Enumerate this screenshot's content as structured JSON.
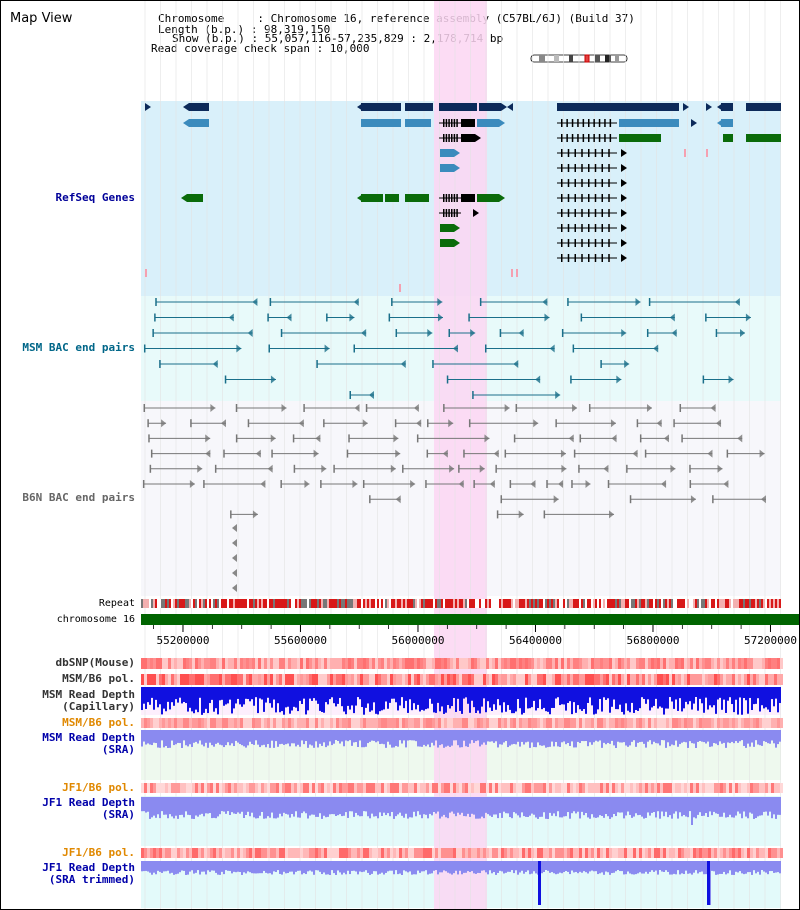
{
  "page": {
    "title": "Map View"
  },
  "info": {
    "lines": [
      "Chromosome     : Chromosome 16, reference assembly (C57BL/6J) (Build 37)",
      "Length (b.p.) : 98,319,150",
      "Show (b.p.) : 55,057,116-57,235,829 : 2,178,714 bp",
      "Read coverage check span : 10,000"
    ]
  },
  "tracks": {
    "refseq": "RefSeq Genes",
    "msm_bac": "MSM BAC end pairs",
    "b6n_bac": "B6N BAC end pairs",
    "repeat": "Repeat",
    "chromosome": "chromosome 16",
    "dbsnp": "dbSNP(Mouse)",
    "msm_b6_pol": "MSM/B6 pol.",
    "msm_depth_cap": "MSM Read Depth\n(Capillary)",
    "msm_b6_pol2": "MSM/B6 pol.",
    "msm_depth_sra": "MSM Read Depth\n(SRA)",
    "jf1_b6_pol": "JF1/B6 pol.",
    "jf1_depth_sra": "JF1 Read Depth\n(SRA)",
    "jf1_b6_pol2": "JF1/B6 pol.",
    "jf1_depth_trim": "JF1 Read Depth\n(SRA trimmed)"
  },
  "axis": {
    "ticks": [
      "55200000",
      "55600000",
      "56000000",
      "56400000",
      "56800000",
      "57200000"
    ],
    "tick_values": [
      55200000,
      55600000,
      56000000,
      56400000,
      56800000,
      57200000
    ],
    "range": [
      55057116,
      57235829
    ]
  },
  "highlight": {
    "start": 56000000,
    "end": 56080000
  },
  "colors": {
    "refseq_bg": "#d9f0fa",
    "refseq_label": "#000099",
    "msm_label": "#006688",
    "b6n_label": "#666666",
    "highlight": "#fbd6f2",
    "chromosome": "#006400",
    "depth_dark": "#1010e0",
    "depth_light": "#8a8af0",
    "pol_label_orange": "#e08800",
    "depth_label_blue": "#0000aa"
  }
}
